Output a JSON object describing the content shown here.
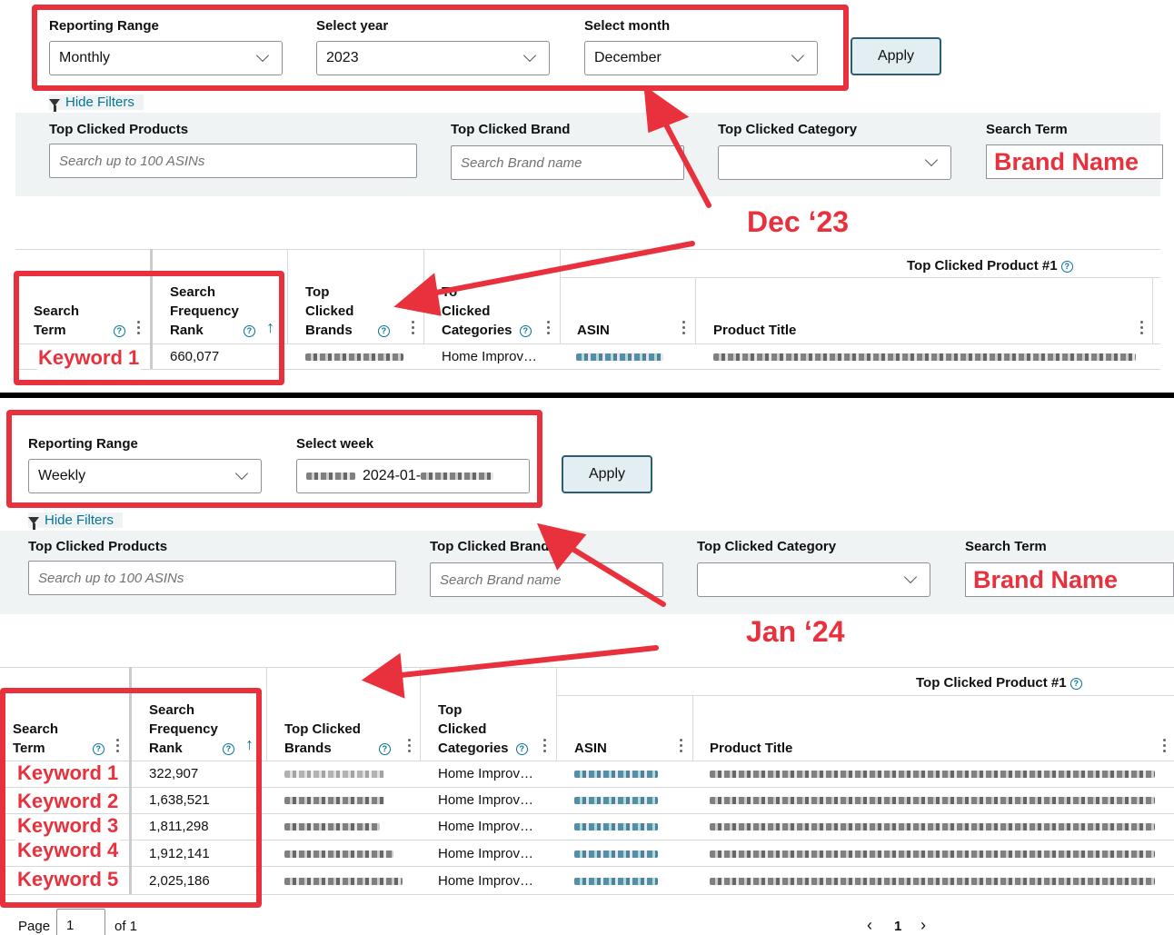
{
  "top": {
    "reporting_range_label": "Reporting Range",
    "reporting_range_value": "Monthly",
    "year_label": "Select year",
    "year_value": "2023",
    "month_label": "Select month",
    "month_value": "December",
    "apply": "Apply",
    "hide_filters": "Hide Filters",
    "products_label": "Top Clicked Products",
    "products_placeholder": "Search up to 100 ASINs",
    "brand_label": "Top Clicked Brand",
    "brand_placeholder": "Search Brand name",
    "category_label": "Top Clicked Category",
    "search_term_label": "Search Term",
    "search_term_value": "Brand Name",
    "annotation": "Dec ‘23",
    "group_header": "Top Clicked Product #1",
    "col_search_term": [
      "Search",
      "Term"
    ],
    "col_sfr": [
      "Search",
      "Frequency",
      "Rank"
    ],
    "col_brands": [
      "Top",
      "Clicked",
      "Brands"
    ],
    "col_categories": [
      "To",
      "Clicked",
      "Categories"
    ],
    "col_asin": "ASIN",
    "col_title": "Product Title",
    "rows": [
      {
        "keyword": "Keyword 1",
        "rank": "660,077",
        "category": "Home Improv…"
      }
    ]
  },
  "bottom": {
    "reporting_range_label": "Reporting Range",
    "reporting_range_value": "Weekly",
    "week_label": "Select week",
    "week_value": "2024-01-",
    "apply": "Apply",
    "hide_filters": "Hide Filters",
    "products_label": "Top Clicked Products",
    "products_placeholder": "Search up to 100 ASINs",
    "brand_label": "Top Clicked Brand",
    "brand_placeholder": "Search Brand name",
    "category_label": "Top Clicked Category",
    "search_term_label": "Search Term",
    "search_term_value": "Brand Name",
    "annotation": "Jan ‘24",
    "group_header": "Top Clicked Product #1",
    "col_search_term": [
      "Search",
      "Term"
    ],
    "col_sfr": [
      "Search",
      "Frequency",
      "Rank"
    ],
    "col_brands": [
      "Top Clicked",
      "Brands"
    ],
    "col_categories": [
      "Top",
      "Clicked",
      "Categories"
    ],
    "col_asin": "ASIN",
    "col_title": "Product Title",
    "rows": [
      {
        "keyword": "Keyword 1",
        "rank": "322,907",
        "category": "Home Improv…"
      },
      {
        "keyword": "Keyword 2",
        "rank": "1,638,521",
        "category": "Home Improv…"
      },
      {
        "keyword": "Keyword 3",
        "rank": "1,811,298",
        "category": "Home Improv…"
      },
      {
        "keyword": "Keyword 4",
        "rank": "1,912,141",
        "category": "Home Improv…"
      },
      {
        "keyword": "Keyword 5",
        "rank": "2,025,186",
        "category": "Home Improv…"
      }
    ],
    "page_label": "Page",
    "page_value": "1",
    "of_label": "of 1",
    "pager_current": "1"
  },
  "icons": [
    "chevron-down-icon",
    "filter-icon",
    "help-icon",
    "kebab-menu-icon",
    "sort-up-icon",
    "chevron-left-icon",
    "chevron-right-icon"
  ],
  "colors": {
    "annotation_red": "#e8313d",
    "link_teal": "#077398",
    "button_border": "#2a5f73",
    "filter_band": "#f0f3f4"
  }
}
